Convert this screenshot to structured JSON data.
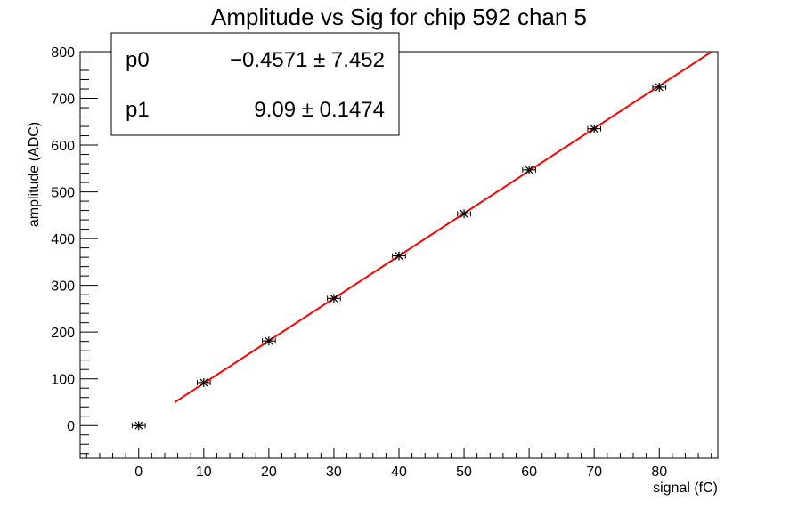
{
  "chart_data": {
    "type": "scatter",
    "title": "Amplitude vs Sig for chip 592 chan 5",
    "xlabel": "signal (fC)",
    "ylabel": "amplitude (ADC)",
    "xlim": [
      -9,
      89
    ],
    "ylim": [
      -70,
      800
    ],
    "x_ticks": [
      0,
      10,
      20,
      30,
      40,
      50,
      60,
      70,
      80
    ],
    "y_ticks": [
      0,
      100,
      200,
      300,
      400,
      500,
      600,
      700,
      800
    ],
    "grid": false,
    "series": [
      {
        "marker": "star",
        "color": "#000000",
        "x": [
          0,
          10,
          20,
          30,
          40,
          50,
          60,
          70,
          80
        ],
        "y": [
          0,
          92,
          181,
          272,
          363,
          453,
          547,
          635,
          724
        ],
        "x_err": [
          1,
          1,
          1,
          1,
          1,
          1,
          1,
          1,
          1
        ]
      }
    ],
    "fit": {
      "color": "#ff0000",
      "x_range": [
        5.5,
        88
      ],
      "p0": -0.4571,
      "p1": 9.09
    },
    "stats_box": {
      "position": "top-left",
      "rows": [
        {
          "name": "p0",
          "value": "−0.4571 ± 7.452"
        },
        {
          "name": "p1",
          "value": "9.09 ± 0.1474"
        }
      ]
    }
  }
}
